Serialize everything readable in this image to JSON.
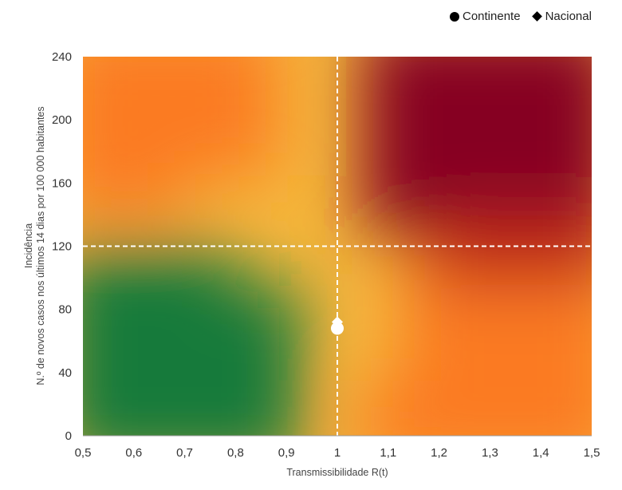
{
  "legend": {
    "continente": "Continente",
    "nacional": "Nacional"
  },
  "chart_data": {
    "type": "scatter",
    "title": "",
    "xlabel": "Transmissibilidade R(t)",
    "ylabel_line1": "Incidência",
    "ylabel_line2": "N.º de novos casos nos últimos 14 dias por 100 000 habitantes",
    "xlim": [
      0.5,
      1.5
    ],
    "ylim": [
      0,
      240
    ],
    "x_ticks": [
      "0,5",
      "0,6",
      "0,7",
      "0,8",
      "0,9",
      "1",
      "1,1",
      "1,2",
      "1,3",
      "1,4",
      "1,5"
    ],
    "x_tick_values": [
      0.5,
      0.6,
      0.7,
      0.8,
      0.9,
      1.0,
      1.1,
      1.2,
      1.3,
      1.4,
      1.5
    ],
    "y_ticks": [
      "0",
      "40",
      "80",
      "120",
      "160",
      "200",
      "240"
    ],
    "y_tick_values": [
      0,
      40,
      80,
      120,
      160,
      200,
      240
    ],
    "reference_lines": {
      "x": 1.0,
      "y": 120
    },
    "colors": {
      "green": "#127a3a",
      "yellow": "#f5b63c",
      "orange": "#fb7a20",
      "red": "#860021"
    },
    "series": [
      {
        "name": "Continente",
        "marker": "circle",
        "x": 1.0,
        "y": 68
      },
      {
        "name": "Nacional",
        "marker": "diamond",
        "x": 1.0,
        "y": 72
      }
    ]
  }
}
